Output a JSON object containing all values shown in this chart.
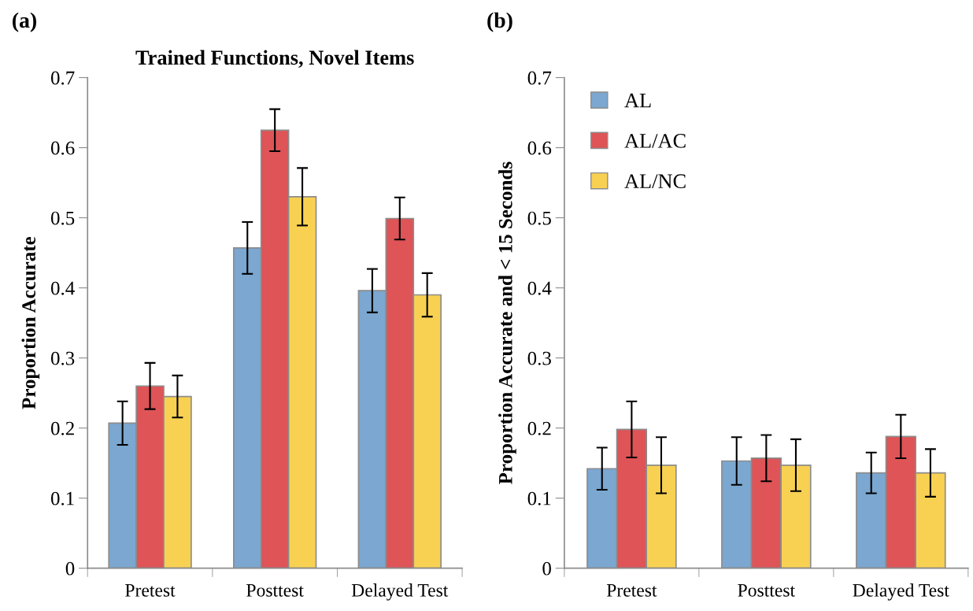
{
  "chart_data": [
    {
      "type": "bar",
      "title": "Trained Functions, Novel Items",
      "ylabel": "Proportion Accurate",
      "annotations": [
        "(a)"
      ],
      "categories": [
        "Pretest",
        "Posttest",
        "Delayed Test"
      ],
      "series": [
        {
          "color": "#7ba7d0",
          "values": [
            0.207,
            0.457,
            0.396
          ],
          "errors": [
            0.031,
            0.037,
            0.031
          ]
        },
        {
          "color": "#de5457",
          "values": [
            0.26,
            0.625,
            0.499
          ],
          "errors": [
            0.033,
            0.03,
            0.03
          ]
        },
        {
          "color": "#f8d153",
          "values": [
            0.245,
            0.53,
            0.39
          ],
          "errors": [
            0.03,
            0.041,
            0.031
          ]
        }
      ],
      "ylim": [
        0,
        0.7
      ],
      "yticks": [
        0,
        0.1,
        0.2,
        0.3,
        0.4,
        0.5,
        0.6,
        0.7
      ],
      "grid": false,
      "legend": false
    },
    {
      "type": "bar",
      "ylabel": "Proportion Accurate and < 15 Seconds",
      "annotations": [
        "(b)"
      ],
      "categories": [
        "Pretest",
        "Posttest",
        "Delayed Test"
      ],
      "series": [
        {
          "name": "AL",
          "color": "#7ba7d0",
          "values": [
            0.142,
            0.153,
            0.136
          ],
          "errors": [
            0.03,
            0.034,
            0.029
          ]
        },
        {
          "name": "AL/AC",
          "color": "#de5457",
          "values": [
            0.198,
            0.157,
            0.188
          ],
          "errors": [
            0.04,
            0.033,
            0.031
          ]
        },
        {
          "name": "AL/NC",
          "color": "#f8d153",
          "values": [
            0.147,
            0.147,
            0.136
          ],
          "errors": [
            0.04,
            0.037,
            0.034
          ]
        }
      ],
      "ylim": [
        0,
        0.7
      ],
      "yticks": [
        0,
        0.1,
        0.2,
        0.3,
        0.4,
        0.5,
        0.6,
        0.7
      ],
      "grid": false,
      "legend": "top left"
    }
  ]
}
